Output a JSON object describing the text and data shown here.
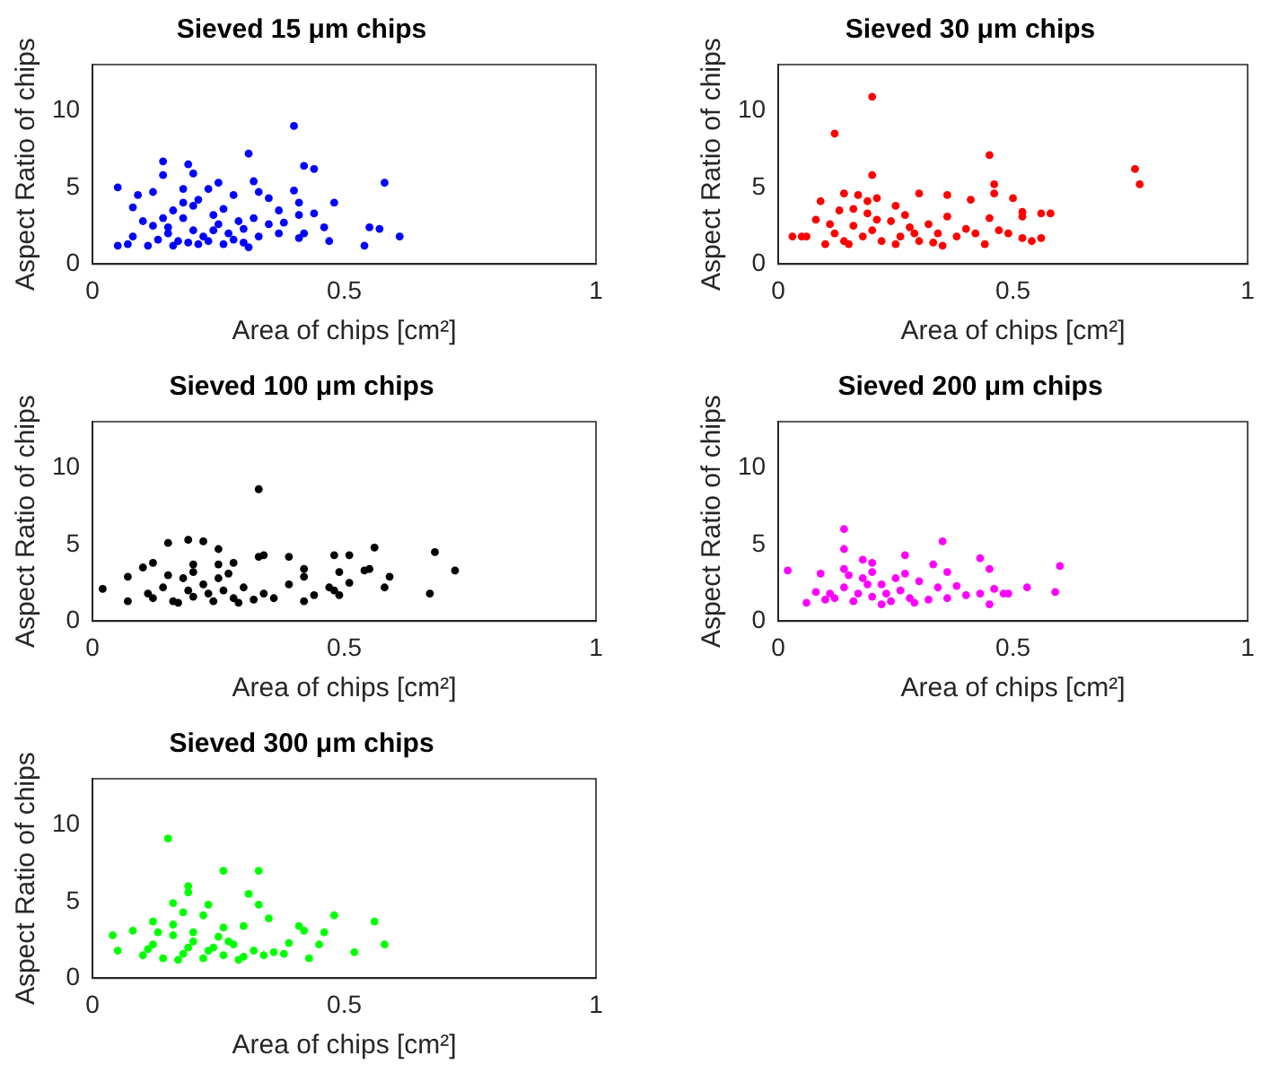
{
  "chart_data": [
    {
      "type": "scatter",
      "title": "Sieved 15 μm chips",
      "xlabel": "Area of chips [cm²]",
      "ylabel": "Aspect Ratio of chips",
      "xlim": [
        0,
        1
      ],
      "xticks": [
        0,
        0.5,
        1
      ],
      "ylim": [
        0,
        13
      ],
      "yticks": [
        0,
        5,
        10
      ],
      "marker": "circle",
      "series": [
        {
          "color": "#0000ff",
          "x": [
            0.4,
            0.31,
            0.14,
            0.19,
            0.42,
            0.44,
            0.05,
            0.58,
            0.48,
            0.61,
            0.54,
            0.55,
            0.57,
            0.47,
            0.46,
            0.44,
            0.41,
            0.4,
            0.32,
            0.25,
            0.14,
            0.2,
            0.09,
            0.08,
            0.12,
            0.05,
            0.08,
            0.18,
            0.23,
            0.28,
            0.33,
            0.35,
            0.37,
            0.41,
            0.37,
            0.41,
            0.31,
            0.26,
            0.21,
            0.16,
            0.11,
            0.07,
            0.12,
            0.15,
            0.18,
            0.2,
            0.22,
            0.25,
            0.27,
            0.3,
            0.33,
            0.16,
            0.2,
            0.24,
            0.13,
            0.17,
            0.19,
            0.23,
            0.28,
            0.3,
            0.35,
            0.1,
            0.14,
            0.26,
            0.29,
            0.21,
            0.18,
            0.24,
            0.15,
            0.32,
            0.38,
            0.42
          ],
          "values": [
            9.0,
            7.2,
            6.7,
            6.5,
            6.4,
            6.2,
            5.0,
            5.3,
            4.0,
            1.8,
            1.2,
            2.4,
            2.3,
            1.5,
            2.4,
            3.3,
            4.0,
            4.8,
            5.4,
            5.3,
            5.8,
            5.9,
            4.5,
            3.7,
            4.7,
            1.2,
            1.8,
            4.9,
            4.9,
            4.5,
            4.7,
            4.3,
            3.5,
            3.2,
            2.0,
            1.7,
            1.1,
            1.3,
            1.3,
            1.2,
            1.2,
            1.3,
            2.5,
            2.0,
            3.0,
            2.2,
            1.8,
            2.6,
            2.0,
            2.3,
            1.8,
            3.5,
            3.8,
            3.2,
            1.6,
            1.5,
            1.4,
            1.5,
            1.6,
            1.4,
            2.6,
            2.8,
            3.0,
            3.6,
            2.8,
            4.2,
            4.0,
            2.2,
            2.4,
            3.0,
            2.7,
            2.0
          ]
        }
      ]
    },
    {
      "type": "scatter",
      "title": "Sieved 30 μm chips",
      "xlabel": "Area of chips [cm²]",
      "ylabel": "Aspect Ratio of chips",
      "xlim": [
        0,
        1
      ],
      "xticks": [
        0,
        0.5,
        1
      ],
      "ylim": [
        0,
        13
      ],
      "yticks": [
        0,
        5,
        10
      ],
      "marker": "circle",
      "series": [
        {
          "color": "#ff0000",
          "x": [
            0.2,
            0.12,
            0.45,
            0.76,
            0.77,
            0.2,
            0.46,
            0.46,
            0.5,
            0.3,
            0.36,
            0.41,
            0.09,
            0.14,
            0.17,
            0.21,
            0.19,
            0.25,
            0.52,
            0.52,
            0.56,
            0.58,
            0.56,
            0.54,
            0.52,
            0.49,
            0.47,
            0.44,
            0.45,
            0.35,
            0.03,
            0.05,
            0.06,
            0.08,
            0.1,
            0.13,
            0.16,
            0.19,
            0.12,
            0.14,
            0.16,
            0.18,
            0.2,
            0.22,
            0.24,
            0.26,
            0.28,
            0.3,
            0.32,
            0.34,
            0.36,
            0.38,
            0.4,
            0.42,
            0.15,
            0.25,
            0.33,
            0.27,
            0.21,
            0.29,
            0.11
          ],
          "values": [
            10.9,
            8.5,
            7.1,
            6.2,
            5.2,
            5.8,
            5.2,
            4.6,
            4.3,
            4.6,
            4.5,
            4.2,
            4.1,
            4.6,
            4.5,
            4.3,
            4.1,
            3.8,
            3.4,
            3.1,
            3.3,
            3.3,
            1.7,
            1.5,
            1.7,
            2.0,
            2.2,
            1.3,
            3.0,
            1.2,
            1.8,
            1.8,
            1.8,
            2.9,
            1.3,
            3.5,
            3.6,
            3.3,
            2.0,
            1.5,
            2.5,
            1.8,
            2.2,
            1.5,
            2.8,
            1.8,
            2.4,
            1.5,
            2.6,
            2.0,
            3.1,
            1.8,
            2.3,
            2.0,
            1.3,
            1.3,
            1.4,
            3.2,
            2.9,
            2.0,
            2.6
          ]
        }
      ]
    },
    {
      "type": "scatter",
      "title": "Sieved 100 μm chips",
      "xlabel": "Area of chips [cm²]",
      "ylabel": "Aspect Ratio of chips",
      "xlim": [
        0,
        1
      ],
      "xticks": [
        0,
        0.5,
        1
      ],
      "ylim": [
        0,
        13
      ],
      "yticks": [
        0,
        5,
        10
      ],
      "marker": "circle",
      "series": [
        {
          "color": "#000000",
          "x": [
            0.33,
            0.19,
            0.22,
            0.15,
            0.25,
            0.33,
            0.34,
            0.39,
            0.48,
            0.51,
            0.56,
            0.68,
            0.72,
            0.59,
            0.58,
            0.67,
            0.54,
            0.55,
            0.51,
            0.49,
            0.47,
            0.48,
            0.49,
            0.02,
            0.07,
            0.07,
            0.12,
            0.1,
            0.42,
            0.42,
            0.44,
            0.42,
            0.39,
            0.28,
            0.25,
            0.2,
            0.12,
            0.14,
            0.16,
            0.18,
            0.2,
            0.22,
            0.24,
            0.26,
            0.28,
            0.3,
            0.32,
            0.34,
            0.36,
            0.15,
            0.2,
            0.25,
            0.29,
            0.17,
            0.23,
            0.11,
            0.27,
            0.19
          ],
          "values": [
            8.6,
            5.3,
            5.2,
            5.1,
            4.7,
            4.2,
            4.3,
            4.2,
            4.3,
            4.3,
            4.8,
            4.5,
            3.3,
            2.9,
            2.2,
            1.8,
            3.3,
            3.4,
            2.5,
            3.2,
            2.2,
            2.0,
            1.7,
            2.1,
            2.9,
            1.3,
            3.8,
            3.5,
            3.4,
            2.9,
            1.7,
            1.3,
            2.4,
            3.8,
            3.7,
            3.7,
            1.5,
            2.2,
            1.3,
            2.8,
            1.6,
            2.4,
            1.3,
            2.0,
            1.5,
            2.2,
            1.4,
            1.8,
            1.5,
            3.0,
            3.2,
            2.8,
            1.2,
            1.2,
            1.8,
            1.8,
            3.1,
            2.0
          ]
        }
      ]
    },
    {
      "type": "scatter",
      "title": "Sieved 200 μm chips",
      "xlabel": "Area of chips [cm²]",
      "ylabel": "Aspect Ratio of chips",
      "xlim": [
        0,
        1
      ],
      "xticks": [
        0,
        0.5,
        1
      ],
      "ylim": [
        0,
        13
      ],
      "yticks": [
        0,
        5,
        10
      ],
      "marker": "circle",
      "series": [
        {
          "color": "#ff00ff",
          "x": [
            0.02,
            0.06,
            0.14,
            0.14,
            0.35,
            0.27,
            0.18,
            0.2,
            0.43,
            0.45,
            0.6,
            0.53,
            0.59,
            0.49,
            0.48,
            0.46,
            0.45,
            0.43,
            0.4,
            0.09,
            0.08,
            0.14,
            0.33,
            0.36,
            0.38,
            0.22,
            0.12,
            0.14,
            0.16,
            0.18,
            0.2,
            0.22,
            0.24,
            0.26,
            0.28,
            0.3,
            0.32,
            0.34,
            0.36,
            0.15,
            0.2,
            0.25,
            0.29,
            0.17,
            0.23,
            0.11,
            0.27,
            0.19,
            0.1
          ],
          "values": [
            3.3,
            1.2,
            6.0,
            4.7,
            5.2,
            4.3,
            4.0,
            3.8,
            4.1,
            3.4,
            3.6,
            2.2,
            1.9,
            1.8,
            1.8,
            2.1,
            1.1,
            1.8,
            1.7,
            3.1,
            1.9,
            3.4,
            3.7,
            3.2,
            2.3,
            1.1,
            1.5,
            2.2,
            1.3,
            2.8,
            1.6,
            2.4,
            1.3,
            2.0,
            1.5,
            2.6,
            1.4,
            2.2,
            1.5,
            3.0,
            3.2,
            2.8,
            1.2,
            1.8,
            1.8,
            1.8,
            3.1,
            2.4,
            1.4
          ]
        }
      ]
    },
    {
      "type": "scatter",
      "title": "Sieved 300 μm chips",
      "xlabel": "Area of chips [cm²]",
      "ylabel": "Aspect Ratio of chips",
      "xlim": [
        0,
        1
      ],
      "xticks": [
        0,
        0.5,
        1
      ],
      "ylim": [
        0,
        13
      ],
      "yticks": [
        0,
        5,
        10
      ],
      "marker": "circle",
      "series": [
        {
          "color": "#00ff00",
          "x": [
            0.15,
            0.26,
            0.33,
            0.19,
            0.19,
            0.31,
            0.16,
            0.33,
            0.23,
            0.18,
            0.22,
            0.35,
            0.48,
            0.56,
            0.58,
            0.52,
            0.46,
            0.45,
            0.41,
            0.42,
            0.43,
            0.04,
            0.05,
            0.08,
            0.12,
            0.16,
            0.3,
            0.26,
            0.39,
            0.1,
            0.12,
            0.14,
            0.16,
            0.18,
            0.2,
            0.22,
            0.24,
            0.26,
            0.28,
            0.3,
            0.32,
            0.34,
            0.36,
            0.13,
            0.2,
            0.25,
            0.29,
            0.17,
            0.23,
            0.11,
            0.27,
            0.19,
            0.38
          ],
          "values": [
            9.1,
            7.0,
            7.0,
            6.0,
            5.6,
            5.5,
            4.9,
            4.8,
            4.8,
            4.3,
            4.1,
            3.9,
            4.1,
            3.7,
            2.2,
            1.7,
            3.0,
            2.2,
            3.4,
            3.1,
            1.3,
            2.8,
            1.8,
            3.1,
            3.7,
            3.5,
            3.4,
            3.3,
            2.3,
            1.5,
            2.2,
            1.3,
            2.8,
            1.6,
            2.4,
            1.3,
            2.0,
            1.5,
            2.2,
            1.4,
            1.8,
            1.5,
            1.7,
            3.0,
            3.0,
            2.7,
            1.2,
            1.2,
            1.8,
            1.9,
            2.4,
            2.0,
            1.6
          ]
        }
      ]
    }
  ]
}
